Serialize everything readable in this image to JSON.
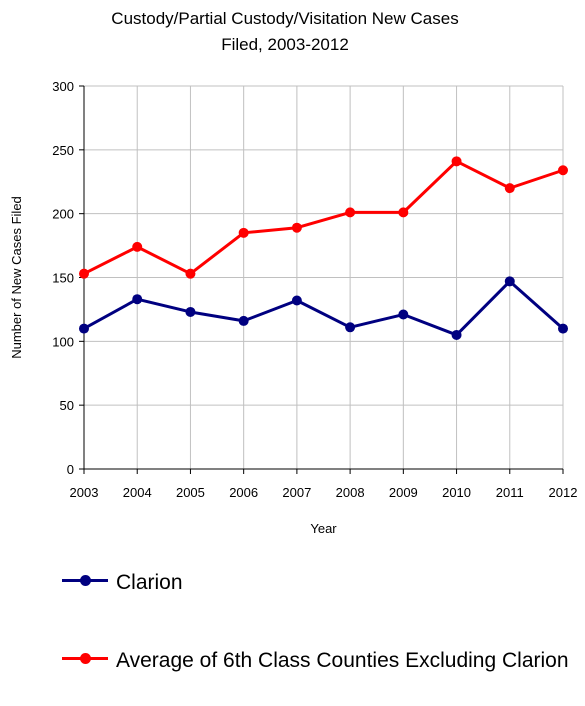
{
  "chart_data": {
    "type": "line",
    "title": "Custody/Partial Custody/Visitation New Cases",
    "title_line2": "Filed, 2003-2012",
    "xlabel": "Year",
    "ylabel": "Number of New Cases Filed",
    "x": [
      "2003",
      "2004",
      "2005",
      "2006",
      "2007",
      "2008",
      "2009",
      "2010",
      "2011",
      "2012"
    ],
    "ylim": [
      0,
      300
    ],
    "yticks": [
      "0",
      "50",
      "100",
      "150",
      "200",
      "250",
      "300"
    ],
    "grid": true,
    "legend_position": "bottom",
    "series": [
      {
        "name": "Clarion",
        "color": "#000080",
        "values": [
          110,
          133,
          123,
          116,
          132,
          111,
          121,
          105,
          147,
          110
        ]
      },
      {
        "name": "Average of 6th Class Counties Excluding Clarion",
        "color": "#ff0000",
        "values": [
          153,
          174,
          153,
          185,
          189,
          201,
          201,
          241,
          220,
          234
        ]
      }
    ]
  }
}
